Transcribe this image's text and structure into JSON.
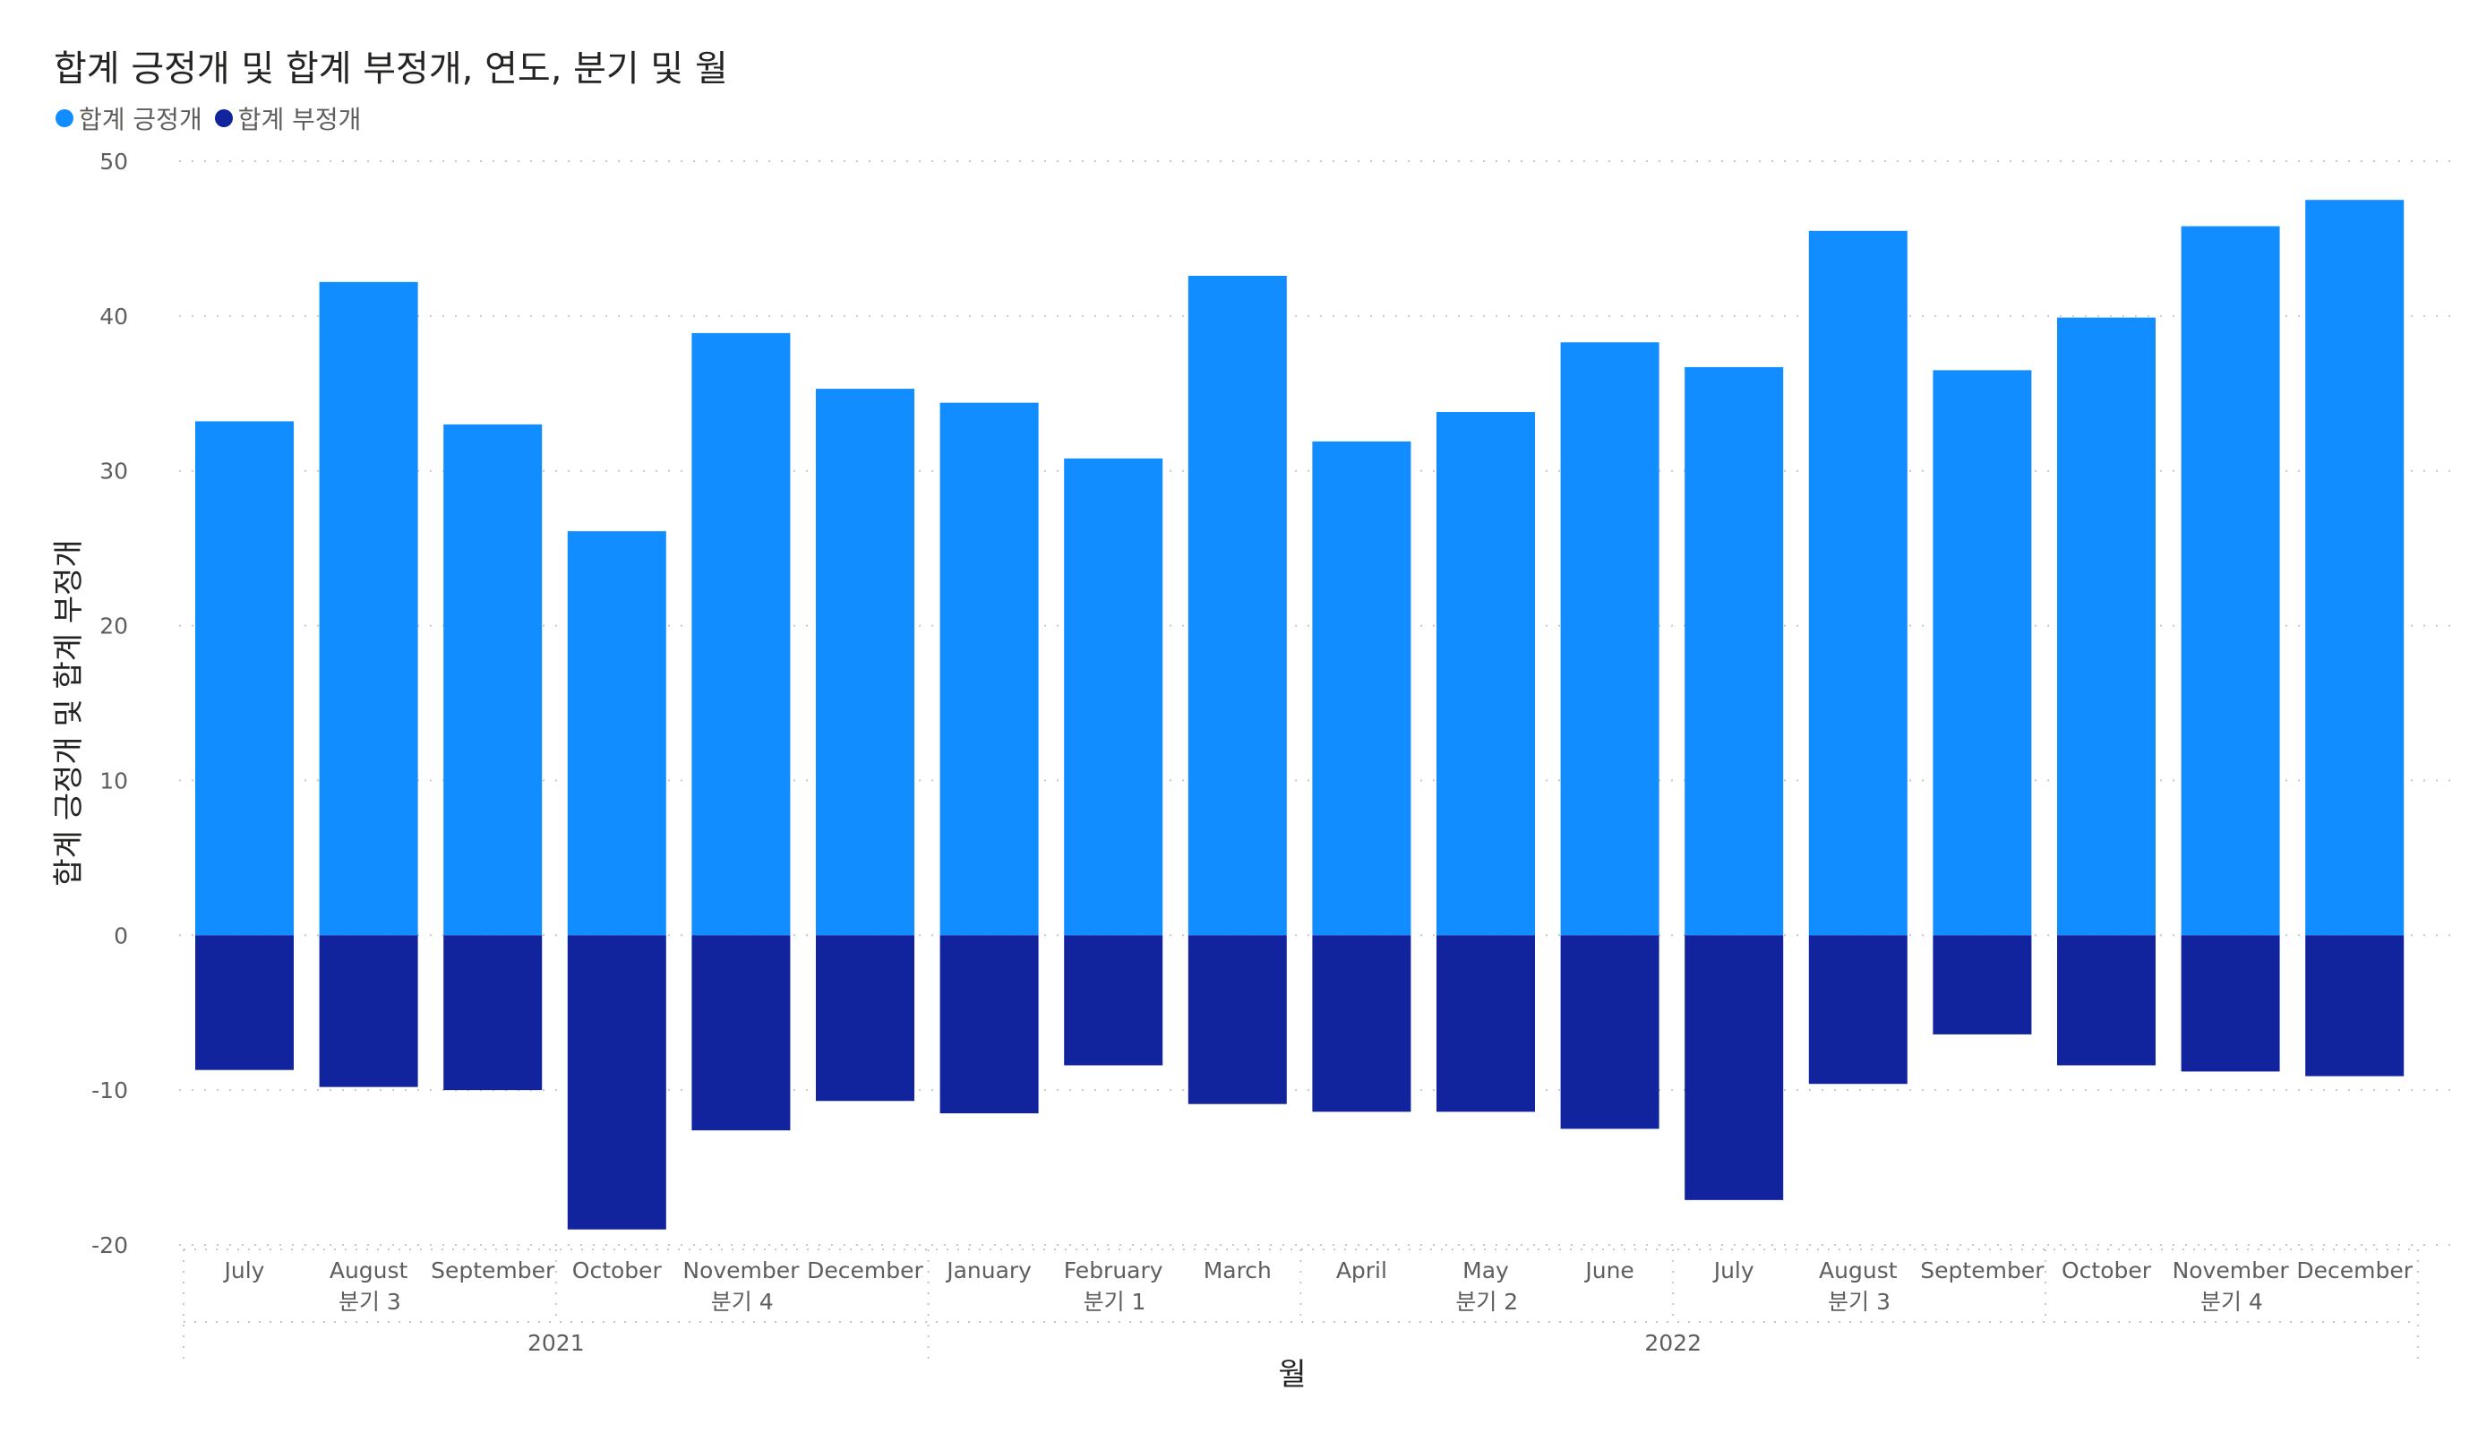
{
  "chart_data": {
    "type": "bar",
    "title": "합계 긍정개 및 합계 부정개, 연도, 분기 및 월",
    "xlabel": "월",
    "ylabel": "합계 긍정개 및 합계 부정개",
    "ylim": [
      -20,
      50
    ],
    "yticks": [
      50,
      40,
      30,
      20,
      10,
      0,
      -10,
      -20
    ],
    "grid": true,
    "legend_position": "top-left",
    "categories": [
      "July",
      "August",
      "September",
      "October",
      "November",
      "December",
      "January",
      "February",
      "March",
      "April",
      "May",
      "June",
      "July",
      "August",
      "September",
      "October",
      "November",
      "December"
    ],
    "series": [
      {
        "name": "합계 긍정개",
        "color": "#118DFF",
        "values": [
          33.2,
          42.2,
          33.0,
          26.1,
          38.9,
          35.3,
          34.4,
          30.8,
          42.6,
          31.9,
          33.8,
          38.3,
          36.7,
          45.5,
          36.5,
          39.9,
          45.8,
          47.5
        ]
      },
      {
        "name": "합계 부정개",
        "color": "#12239E",
        "values": [
          -8.7,
          -9.8,
          -10.0,
          -19.0,
          -12.6,
          -10.7,
          -11.5,
          -8.4,
          -10.9,
          -11.4,
          -11.4,
          -12.5,
          -17.1,
          -9.6,
          -6.4,
          -8.4,
          -8.8,
          -9.1
        ]
      }
    ],
    "quarters": [
      {
        "label": "분기 3",
        "year": "2021",
        "months": 3
      },
      {
        "label": "분기 4",
        "year": "2021",
        "months": 3
      },
      {
        "label": "분기 1",
        "year": "2022",
        "months": 3
      },
      {
        "label": "분기 2",
        "year": "2022",
        "months": 3
      },
      {
        "label": "분기 3",
        "year": "2022",
        "months": 3
      },
      {
        "label": "분기 4",
        "year": "2022",
        "months": 3
      }
    ],
    "years": [
      {
        "label": "2021",
        "months": 6
      },
      {
        "label": "2022",
        "months": 12
      }
    ]
  }
}
